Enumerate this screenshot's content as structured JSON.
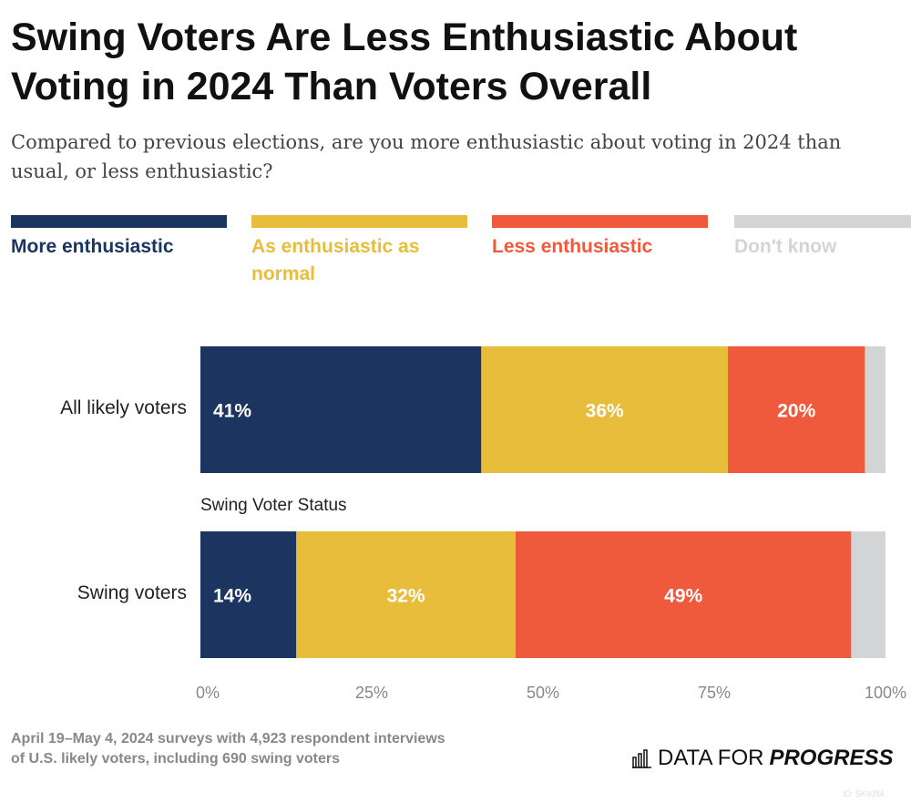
{
  "title": "Swing Voters Are Less Enthusiastic About Voting in 2024 Than Voters Overall",
  "subtitle": "Compared to previous elections, are you more enthusiastic about voting in 2024 than usual, or less enthusiastic?",
  "footnote": "April 19–May 4, 2024 surveys with 4,923 respondent interviews of U.S. likely voters, including 690 swing voters",
  "logo": {
    "text_plain": "DATA FOR",
    "text_bold": "PROGRESS",
    "icon": "bar-chart-icon"
  },
  "chart_id": "ID: SK9J94",
  "chart_data": {
    "type": "bar",
    "orientation": "horizontal",
    "stacked": true,
    "categories": [
      "All likely voters",
      "Swing voters"
    ],
    "group_label": "Swing Voter Status",
    "series": [
      {
        "name": "More enthusiastic",
        "color": "#1b3560",
        "values": [
          41,
          14
        ],
        "labels": [
          "41%",
          "14%"
        ]
      },
      {
        "name": "As enthusiastic as normal",
        "color": "#e8bd3c",
        "values": [
          36,
          32
        ],
        "labels": [
          "36%",
          "32%"
        ]
      },
      {
        "name": "Less enthusiastic",
        "color": "#f05a3c",
        "values": [
          20,
          49
        ],
        "labels": [
          "20%",
          "49%"
        ]
      },
      {
        "name": "Don't know",
        "color": "#d3d4d6",
        "values": [
          3,
          5
        ],
        "labels": [
          "",
          ""
        ]
      }
    ],
    "xlim": [
      0,
      100
    ],
    "x_ticks": [
      "0%",
      "25%",
      "50%",
      "75%",
      "100%"
    ],
    "legend_position": "top",
    "grid": false
  }
}
